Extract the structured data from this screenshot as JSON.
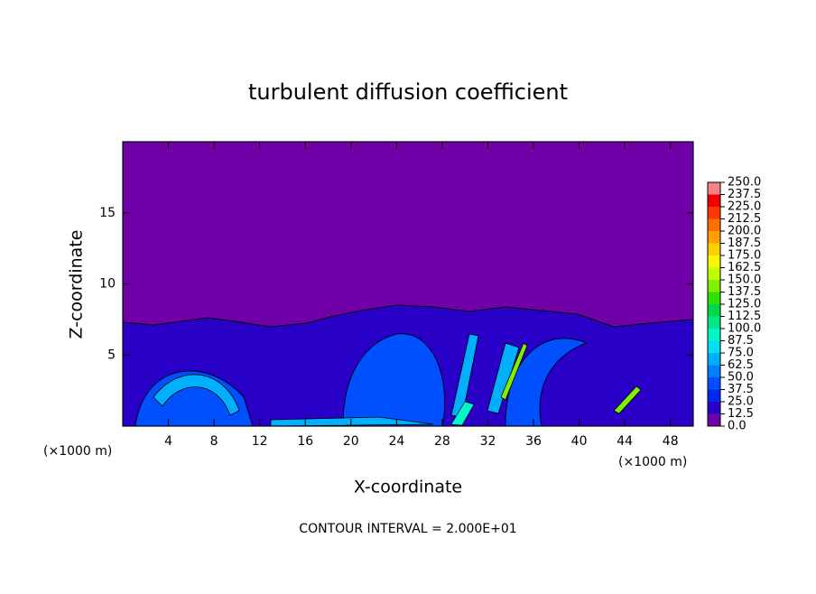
{
  "chart_data": {
    "type": "contour",
    "title": "turbulent diffusion coefficient",
    "xlabel": "X-coordinate",
    "ylabel": "Z-coordinate",
    "x_unit_left": "(×1000 m)",
    "x_unit_right": "(×1000 m)",
    "footer": "CONTOUR INTERVAL = 2.000E+01",
    "xlim": [
      0,
      50
    ],
    "ylim": [
      0,
      20
    ],
    "xticks": [
      4,
      8,
      12,
      16,
      20,
      24,
      28,
      32,
      36,
      40,
      44,
      48
    ],
    "yticks": [
      5,
      10,
      15
    ],
    "colorbar": {
      "levels": [
        {
          "value": 0,
          "label": "0.0"
        },
        {
          "value": 12.5,
          "label": "12.5"
        },
        {
          "value": 25,
          "label": "25.0"
        },
        {
          "value": 37.5,
          "label": "37.5"
        },
        {
          "value": 50,
          "label": "50.0"
        },
        {
          "value": 62.5,
          "label": "62.5"
        },
        {
          "value": 75,
          "label": "75.0"
        },
        {
          "value": 87.5,
          "label": "87.5"
        },
        {
          "value": 100,
          "label": "100.0"
        },
        {
          "value": 112.5,
          "label": "112.5"
        },
        {
          "value": 125,
          "label": "125.0"
        },
        {
          "value": 137.5,
          "label": "137.5"
        },
        {
          "value": 150,
          "label": "150.0"
        },
        {
          "value": 162.5,
          "label": "162.5"
        },
        {
          "value": 175,
          "label": "175.0"
        },
        {
          "value": 187.5,
          "label": "187.5"
        },
        {
          "value": 200,
          "label": "200.0"
        },
        {
          "value": 212.5,
          "label": "212.5"
        },
        {
          "value": 225,
          "label": "225.0"
        },
        {
          "value": 237.5,
          "label": "237.5"
        },
        {
          "value": 250,
          "label": "250.0"
        }
      ],
      "colors": [
        "#7000a8",
        "#2800c8",
        "#0028f0",
        "#0050ff",
        "#0080ff",
        "#00b0ff",
        "#00e0f0",
        "#00f8c8",
        "#00e888",
        "#00d848",
        "#30e000",
        "#80f000",
        "#c0ff00",
        "#f8f800",
        "#ffd000",
        "#ffa000",
        "#ff7000",
        "#ff3800",
        "#f00000",
        "#f88080"
      ]
    }
  }
}
